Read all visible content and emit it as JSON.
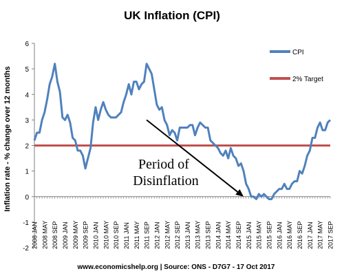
{
  "chart_data": {
    "type": "line",
    "title": "UK Inflation (CPI)",
    "ylabel": "Inflation rate  - % change over 12 months",
    "ylim": [
      -2,
      6
    ],
    "yticks": [
      -2,
      -1,
      0,
      1,
      2,
      3,
      4,
      5,
      6
    ],
    "grid": false,
    "legend_position": "top-right",
    "xtick_labels": [
      "2008 JAN",
      "2008 MAY",
      "2008 SEP",
      "2009 JAN",
      "2009 MAY",
      "2009 SEP",
      "2010 JAN",
      "2010 MAY",
      "2010 SEP",
      "2011 JAN",
      "2011 MAY",
      "2011 SEP",
      "2012 JAN",
      "2012 MAY",
      "2012 SEP",
      "2013 JAN",
      "2013 MAY",
      "2013 SEP",
      "2014 JAN",
      "2014 MAY",
      "2014 SEP",
      "2015 JAN",
      "2015 MAY",
      "2015 SEP",
      "2016 JAN",
      "2016 MAY",
      "2016 SEP",
      "2017 JAN",
      "2017 MAY",
      "2017 SEP"
    ],
    "series": [
      {
        "name": "CPI",
        "color": "#4F81BD",
        "start": "2008 JAN",
        "frequency": "monthly",
        "values": [
          2.2,
          2.5,
          2.5,
          3.0,
          3.3,
          3.8,
          4.4,
          4.7,
          5.2,
          4.5,
          4.1,
          3.1,
          3.0,
          3.2,
          2.9,
          2.3,
          2.2,
          1.8,
          1.8,
          1.6,
          1.1,
          1.5,
          1.9,
          2.9,
          3.5,
          3.0,
          3.4,
          3.7,
          3.4,
          3.2,
          3.1,
          3.1,
          3.1,
          3.2,
          3.3,
          3.7,
          4.0,
          4.4,
          4.0,
          4.5,
          4.5,
          4.2,
          4.4,
          4.5,
          5.2,
          5.0,
          4.8,
          4.2,
          3.6,
          3.4,
          3.5,
          3.0,
          2.8,
          2.4,
          2.6,
          2.5,
          2.2,
          2.7,
          2.7,
          2.7,
          2.7,
          2.8,
          2.8,
          2.4,
          2.7,
          2.9,
          2.8,
          2.7,
          2.7,
          2.2,
          2.1,
          2.0,
          1.9,
          1.7,
          1.6,
          1.8,
          1.5,
          1.9,
          1.6,
          1.5,
          1.2,
          1.3,
          1.0,
          0.5,
          0.3,
          0.0,
          0.0,
          -0.1,
          0.1,
          0.0,
          0.1,
          0.0,
          -0.1,
          -0.1,
          0.1,
          0.2,
          0.3,
          0.3,
          0.5,
          0.3,
          0.3,
          0.5,
          0.6,
          0.6,
          1.0,
          0.9,
          1.2,
          1.6,
          1.8,
          2.3,
          2.3,
          2.7,
          2.9,
          2.6,
          2.6,
          2.9,
          3.0
        ]
      },
      {
        "name": "2% Target",
        "color": "#C0504D",
        "values": [
          2,
          2
        ]
      }
    ],
    "annotation": {
      "text_line1": "Period of",
      "text_line2": "Disinflation",
      "arrow_from": {
        "x": "2011 SEP",
        "y": 3.0
      },
      "arrow_to": {
        "x": "2014 NOV",
        "y": 0.0
      }
    },
    "source_note": "www.economicshelp.org | Source: ONS - D7G7 - 17 Oct 2017"
  }
}
